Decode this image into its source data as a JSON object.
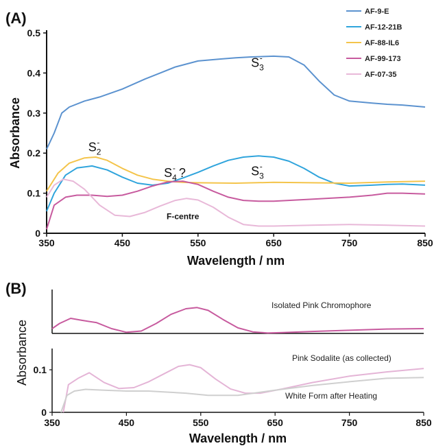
{
  "chart_data": [
    {
      "panel": "(A)",
      "type": "line",
      "xlabel": "Wavelength / nm",
      "ylabel": "Absorbance",
      "xlim": [
        350,
        850
      ],
      "ylim": [
        0,
        0.5
      ],
      "xticks": [
        "350",
        "450",
        "550",
        "650",
        "750",
        "850"
      ],
      "yticks": [
        "0",
        "0.1",
        "0.2",
        "0.3",
        "0.4",
        "0.5"
      ],
      "legend_position": "top-right",
      "series": [
        {
          "name": "AF-9-E",
          "color": "#5b92cf",
          "x": [
            350,
            360,
            370,
            380,
            400,
            420,
            450,
            480,
            500,
            520,
            550,
            580,
            600,
            620,
            650,
            670,
            690,
            710,
            730,
            750,
            780,
            800,
            820,
            850
          ],
          "y": [
            0.21,
            0.25,
            0.3,
            0.315,
            0.33,
            0.34,
            0.36,
            0.385,
            0.4,
            0.415,
            0.43,
            0.435,
            0.438,
            0.44,
            0.442,
            0.44,
            0.42,
            0.38,
            0.345,
            0.33,
            0.325,
            0.322,
            0.32,
            0.315
          ]
        },
        {
          "name": "AF-12-21B",
          "color": "#2fa4dc",
          "x": [
            350,
            360,
            375,
            390,
            410,
            430,
            450,
            470,
            490,
            510,
            530,
            550,
            570,
            590,
            610,
            630,
            650,
            670,
            690,
            710,
            730,
            750,
            780,
            800,
            820,
            850
          ],
          "y": [
            0.055,
            0.1,
            0.145,
            0.163,
            0.168,
            0.158,
            0.14,
            0.125,
            0.12,
            0.125,
            0.138,
            0.152,
            0.168,
            0.182,
            0.19,
            0.193,
            0.19,
            0.18,
            0.162,
            0.14,
            0.125,
            0.118,
            0.12,
            0.122,
            0.123,
            0.12
          ]
        },
        {
          "name": "AF-88-IL6",
          "color": "#f4c44a",
          "x": [
            350,
            365,
            380,
            400,
            415,
            430,
            450,
            470,
            490,
            510,
            530,
            550,
            600,
            650,
            700,
            750,
            800,
            850
          ],
          "y": [
            0.105,
            0.15,
            0.175,
            0.188,
            0.19,
            0.182,
            0.162,
            0.145,
            0.135,
            0.13,
            0.127,
            0.126,
            0.125,
            0.127,
            0.126,
            0.125,
            0.128,
            0.13
          ]
        },
        {
          "name": "AF-99-173",
          "color": "#c75a9e",
          "x": [
            350,
            360,
            375,
            390,
            410,
            430,
            450,
            470,
            490,
            510,
            530,
            550,
            570,
            590,
            610,
            630,
            650,
            700,
            750,
            780,
            800,
            820,
            850
          ],
          "y": [
            0.01,
            0.07,
            0.09,
            0.095,
            0.095,
            0.092,
            0.095,
            0.105,
            0.118,
            0.128,
            0.13,
            0.122,
            0.105,
            0.09,
            0.082,
            0.08,
            0.08,
            0.085,
            0.09,
            0.095,
            0.1,
            0.1,
            0.098
          ]
        },
        {
          "name": "AF-07-35",
          "color": "#e8b8d8",
          "x": [
            350,
            360,
            372,
            385,
            400,
            420,
            440,
            460,
            480,
            500,
            520,
            535,
            550,
            570,
            590,
            610,
            630,
            650,
            700,
            750,
            800,
            850
          ],
          "y": [
            0.09,
            0.12,
            0.135,
            0.13,
            0.11,
            0.07,
            0.045,
            0.042,
            0.052,
            0.068,
            0.082,
            0.087,
            0.083,
            0.065,
            0.04,
            0.022,
            0.018,
            0.018,
            0.02,
            0.022,
            0.02,
            0.018
          ]
        }
      ],
      "annotations": [
        {
          "base": "S",
          "sub": "2",
          "sup": "-",
          "x": 405,
          "y": 0.205
        },
        {
          "base": "S",
          "sub": "4",
          "sup": "-",
          "tail": " ?",
          "x": 505,
          "y": 0.14
        },
        {
          "base": "S",
          "sub": "3",
          "sup": "-",
          "x": 620,
          "y": 0.145
        },
        {
          "base": "S",
          "sub": "3",
          "sup": "-",
          "x": 620,
          "y": 0.415
        },
        {
          "text": "F-centre",
          "x": 530,
          "y": 0.035
        }
      ]
    },
    {
      "panel": "(B)",
      "type": "line",
      "xlabel": "Wavelength / nm",
      "ylabel": "Absorbance",
      "xlim": [
        350,
        850
      ],
      "xticks": [
        "350",
        "450",
        "550",
        "650",
        "750",
        "850"
      ],
      "yticks": [
        "0",
        "0.1"
      ],
      "top": {
        "ylim": [
          0,
          1
        ],
        "series": [
          {
            "name": "Isolated Pink Chromophore",
            "color": "#c75a9e",
            "x": [
              350,
              360,
              375,
              390,
              410,
              430,
              450,
              470,
              490,
              510,
              530,
              545,
              560,
              580,
              600,
              620,
              640,
              660,
              700,
              750,
              800,
              850
            ],
            "y": [
              0.12,
              0.25,
              0.38,
              0.33,
              0.27,
              0.12,
              0.03,
              0.06,
              0.25,
              0.48,
              0.62,
              0.65,
              0.58,
              0.35,
              0.14,
              0.04,
              0.01,
              0.02,
              0.05,
              0.08,
              0.11,
              0.12
            ]
          }
        ]
      },
      "bottom": {
        "ylim": [
          0,
          0.15
        ],
        "series": [
          {
            "name": "Pink Sodalite (as collected)",
            "color": "#e4b4d6",
            "x": [
              365,
              372,
              385,
              400,
              420,
              440,
              460,
              480,
              500,
              520,
              535,
              550,
              570,
              590,
              610,
              630,
              660,
              700,
              750,
              800,
              850
            ],
            "y": [
              0.0,
              0.065,
              0.08,
              0.093,
              0.07,
              0.056,
              0.058,
              0.072,
              0.09,
              0.108,
              0.112,
              0.105,
              0.078,
              0.055,
              0.045,
              0.045,
              0.055,
              0.07,
              0.085,
              0.095,
              0.103
            ]
          },
          {
            "name": "White Form after Heating",
            "color": "#cfcfcf",
            "x": [
              362,
              370,
              380,
              395,
              420,
              450,
              480,
              500,
              530,
              560,
              600,
              650,
              700,
              750,
              800,
              850
            ],
            "y": [
              0.0,
              0.04,
              0.05,
              0.054,
              0.052,
              0.05,
              0.05,
              0.048,
              0.045,
              0.04,
              0.04,
              0.052,
              0.063,
              0.072,
              0.08,
              0.082
            ]
          }
        ]
      }
    }
  ]
}
